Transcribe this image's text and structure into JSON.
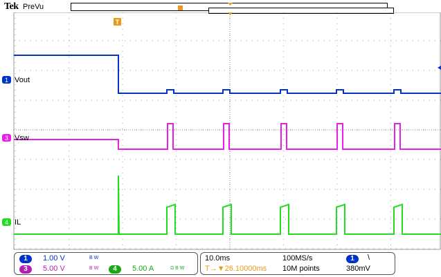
{
  "header": {
    "brand": "Tek",
    "mode": "PreVu"
  },
  "trigger": {
    "marker": "T"
  },
  "channels": [
    {
      "num": "1",
      "label": "Vout",
      "color": "#0033cc",
      "scale": "1.00 V",
      "bw_mark": "B W"
    },
    {
      "num": "3",
      "label": "Vsw",
      "color": "#e61ee6",
      "scale": "5.00 V",
      "bw_mark": "B W"
    },
    {
      "num": "4",
      "label": "IL",
      "color": "#22dd22",
      "scale": "5.00 A",
      "bw_mark": "Ω B W"
    }
  ],
  "acquisition": {
    "timebase": "10.0ms",
    "sample_rate": "100MS/s",
    "trigger_delay": "T→▼26.10000ms",
    "record_length": "10M points",
    "trigger_source": "1",
    "trigger_slope": "\\",
    "trigger_level": "380mV"
  },
  "colors": {
    "grid": "#9a9a9a",
    "trigger": "#e89a1a",
    "ch1": "#0033cc",
    "ch3": "#e61ee6",
    "ch4": "#22dd22"
  }
}
